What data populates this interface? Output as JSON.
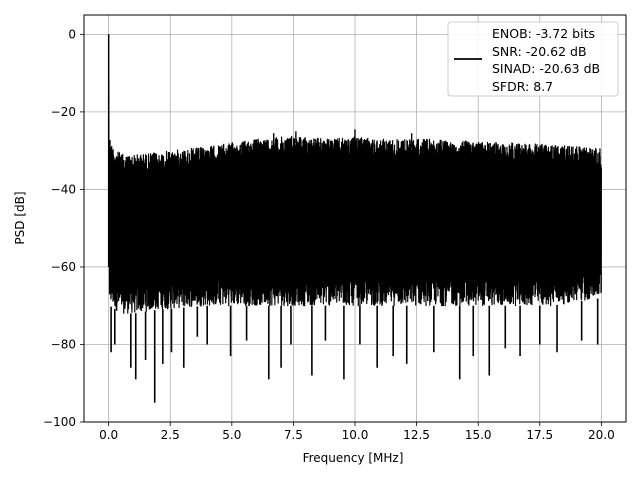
{
  "chart_data": {
    "type": "line",
    "xlabel": "Frequency [MHz]",
    "ylabel": "PSD [dB]",
    "xlim": [
      -1.0,
      21.0
    ],
    "ylim": [
      -100,
      5
    ],
    "xticks": [
      0.0,
      2.5,
      5.0,
      7.5,
      10.0,
      12.5,
      15.0,
      17.5,
      20.0
    ],
    "xtick_labels": [
      "0.0",
      "2.5",
      "5.0",
      "7.5",
      "10.0",
      "12.5",
      "15.0",
      "17.5",
      "20.0"
    ],
    "yticks": [
      0,
      -20,
      -40,
      -60,
      -80,
      -100
    ],
    "ytick_labels": [
      "0",
      "−20",
      "−40",
      "−60",
      "−80",
      "−100"
    ],
    "grid": true,
    "legend_position": "top-right",
    "series": [
      {
        "color": "#000000",
        "x_range": [
          0.0,
          20.0
        ],
        "peak": {
          "x": 0.0,
          "y": 0.0
        },
        "upper_envelope": {
          "x": [
            0.05,
            0.1,
            0.3,
            0.6,
            1.0,
            2.0,
            2.5,
            4.0,
            5.0,
            6.0,
            7.0,
            7.5,
            8.0,
            9.0,
            10.0,
            11.0,
            12.0,
            13.0,
            14.0,
            15.0,
            16.0,
            17.0,
            18.0,
            19.0,
            20.0
          ],
          "y": [
            -26,
            -28,
            -30,
            -31,
            -31,
            -30.5,
            -30,
            -29,
            -28,
            -27,
            -26.5,
            -26,
            -26.5,
            -27,
            -26.5,
            -27,
            -27,
            -27,
            -27.5,
            -27.5,
            -28,
            -28,
            -28.5,
            -29,
            -29.5
          ]
        },
        "lower_envelope": {
          "x": [
            0.05,
            0.5,
            1.0,
            2.0,
            4.0,
            6.0,
            8.0,
            10.0,
            12.0,
            14.0,
            16.0,
            18.0,
            20.0
          ],
          "y": [
            -70,
            -72,
            -72,
            -71,
            -70,
            -70,
            -70,
            -70,
            -70,
            -70,
            -70,
            -70,
            -68
          ]
        },
        "deep_nulls": [
          {
            "x": 0.1,
            "y": -82
          },
          {
            "x": 0.25,
            "y": -80
          },
          {
            "x": 0.9,
            "y": -86
          },
          {
            "x": 1.1,
            "y": -89
          },
          {
            "x": 1.5,
            "y": -84
          },
          {
            "x": 1.87,
            "y": -95
          },
          {
            "x": 2.2,
            "y": -85
          },
          {
            "x": 2.55,
            "y": -82
          },
          {
            "x": 3.05,
            "y": -86
          },
          {
            "x": 3.6,
            "y": -78
          },
          {
            "x": 4.0,
            "y": -80
          },
          {
            "x": 4.95,
            "y": -83
          },
          {
            "x": 5.6,
            "y": -79
          },
          {
            "x": 6.5,
            "y": -89
          },
          {
            "x": 7.0,
            "y": -86
          },
          {
            "x": 7.4,
            "y": -80
          },
          {
            "x": 8.25,
            "y": -88
          },
          {
            "x": 8.8,
            "y": -79
          },
          {
            "x": 9.55,
            "y": -89
          },
          {
            "x": 10.2,
            "y": -80
          },
          {
            "x": 10.9,
            "y": -86
          },
          {
            "x": 11.55,
            "y": -83
          },
          {
            "x": 12.1,
            "y": -85
          },
          {
            "x": 13.2,
            "y": -82
          },
          {
            "x": 14.25,
            "y": -89
          },
          {
            "x": 14.8,
            "y": -83
          },
          {
            "x": 15.45,
            "y": -88
          },
          {
            "x": 16.1,
            "y": -81
          },
          {
            "x": 16.7,
            "y": -83
          },
          {
            "x": 17.5,
            "y": -80
          },
          {
            "x": 18.2,
            "y": -82
          },
          {
            "x": 19.2,
            "y": -79
          },
          {
            "x": 19.85,
            "y": -80
          }
        ],
        "tall_spikes": [
          {
            "x": 7.6,
            "y": -25
          },
          {
            "x": 10.0,
            "y": -24.5
          },
          {
            "x": 12.3,
            "y": -25.5
          },
          {
            "x": 6.7,
            "y": -25.5
          }
        ]
      }
    ],
    "legend_lines": [
      "ENOB: -3.72 bits",
      "SNR: -20.62 dB",
      "SINAD: -20.63 dB",
      "SFDR: 8.7"
    ]
  }
}
